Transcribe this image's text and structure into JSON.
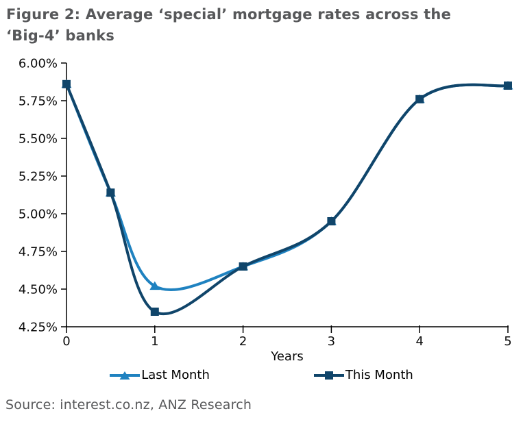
{
  "title_lines": [
    "Figure 2: Average ‘special’ mortgage rates across the",
    "‘Big-4’ banks"
  ],
  "source": "Source: interest.co.nz, ANZ Research",
  "colors": {
    "title_text": "#57585a",
    "source_text": "#58595b",
    "axis": "#000000",
    "last_month": "#1f82c0",
    "this_month": "#10456a"
  },
  "chart_data": {
    "type": "line",
    "smooth": true,
    "grid": false,
    "x": [
      0,
      0.5,
      1,
      2,
      3,
      4,
      5
    ],
    "series": [
      {
        "name": "Last Month",
        "marker": "triangle",
        "color": "#1f82c0",
        "values": [
          5.86,
          5.14,
          4.52,
          4.65,
          4.95,
          5.76,
          5.85
        ]
      },
      {
        "name": "This Month",
        "marker": "square",
        "color": "#10456a",
        "values": [
          5.86,
          5.14,
          4.35,
          4.65,
          4.95,
          5.76,
          5.85
        ]
      }
    ],
    "xlabel": "Years",
    "ylabel": "",
    "xlim": [
      0,
      5
    ],
    "ylim": [
      4.25,
      6.0
    ],
    "xticks": [
      0,
      1,
      2,
      3,
      4,
      5
    ],
    "yticks": [
      6.0,
      5.75,
      5.5,
      5.25,
      5.0,
      4.75,
      4.5,
      4.25
    ],
    "ytick_suffix": "%",
    "legend_position": "bottom"
  }
}
